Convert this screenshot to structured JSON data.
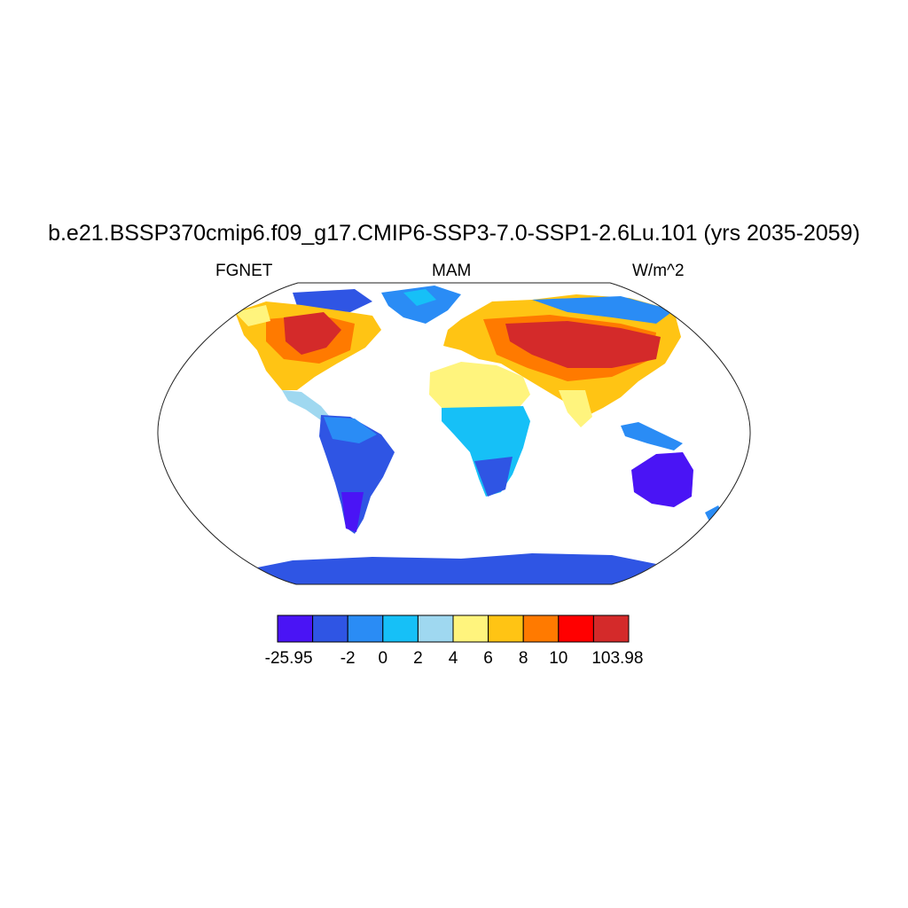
{
  "title": "b.e21.BSSP370cmip6.f09_g17.CMIP6-SSP3-7.0-SSP1-2.6Lu.101 (yrs 2035-2059)",
  "left_label": "FGNET",
  "center_label": "MAM",
  "right_label": "W/m^2",
  "map": {
    "projection": "Robinson",
    "variable": "FGNET",
    "season": "MAM",
    "units": "W/m^2"
  },
  "colorbar": {
    "colors": [
      "#4a14f5",
      "#2f55e4",
      "#2a8cf5",
      "#16c0f7",
      "#9fd8f0",
      "#fff47d",
      "#ffc414",
      "#ff7a00",
      "#ff0000",
      "#d42a2a"
    ],
    "labels": [
      "-25.95",
      "-2",
      "0",
      "2",
      "4",
      "6",
      "8",
      "10",
      "103.98"
    ]
  }
}
